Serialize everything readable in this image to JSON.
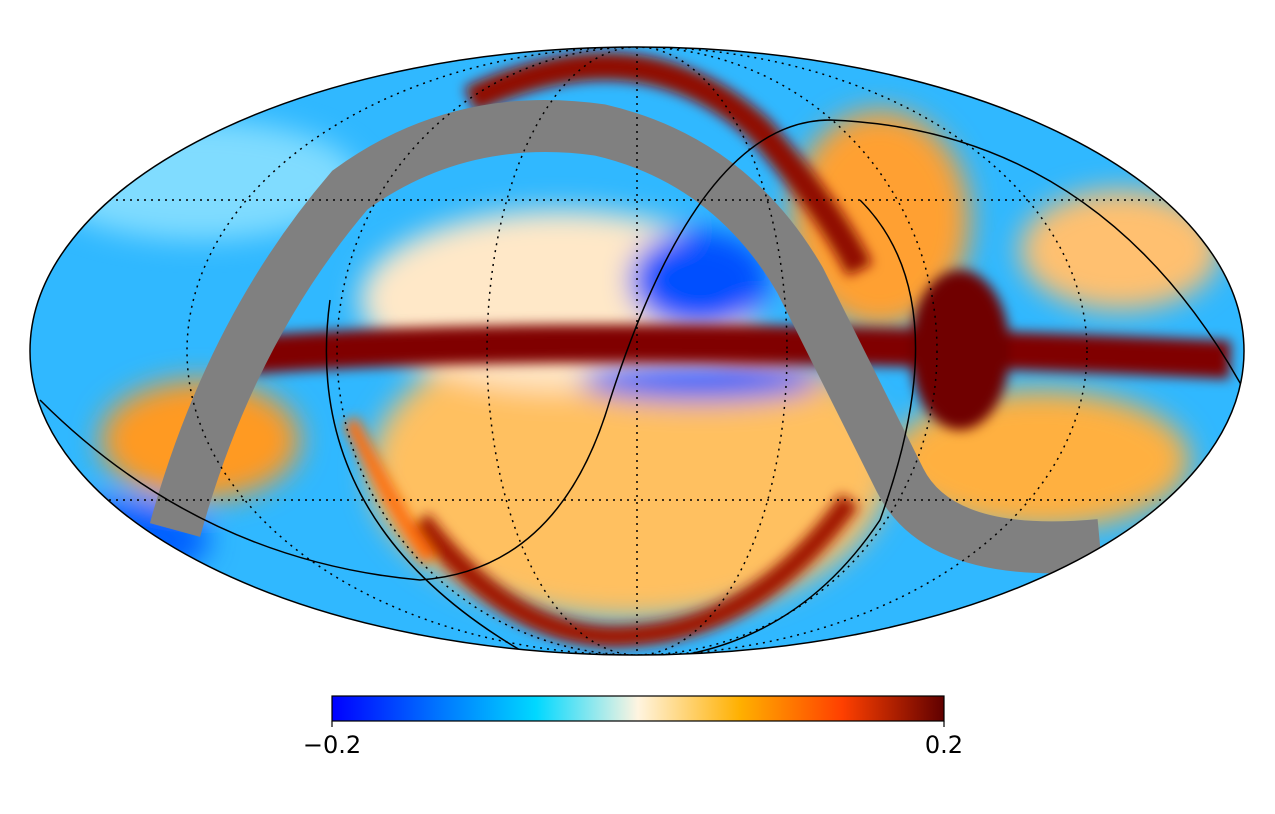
{
  "colorbar": {
    "lim": [
      -0.2,
      0.2
    ],
    "ticks": [
      {
        "value": -0.2,
        "label": "−0.2"
      },
      0.2
    ],
    "colormap": [
      "#0000ff",
      "#0070ff",
      "#00d8ff",
      "#fff4e0",
      "#ffb000",
      "#ff4000",
      "#600000"
    ]
  }
}
